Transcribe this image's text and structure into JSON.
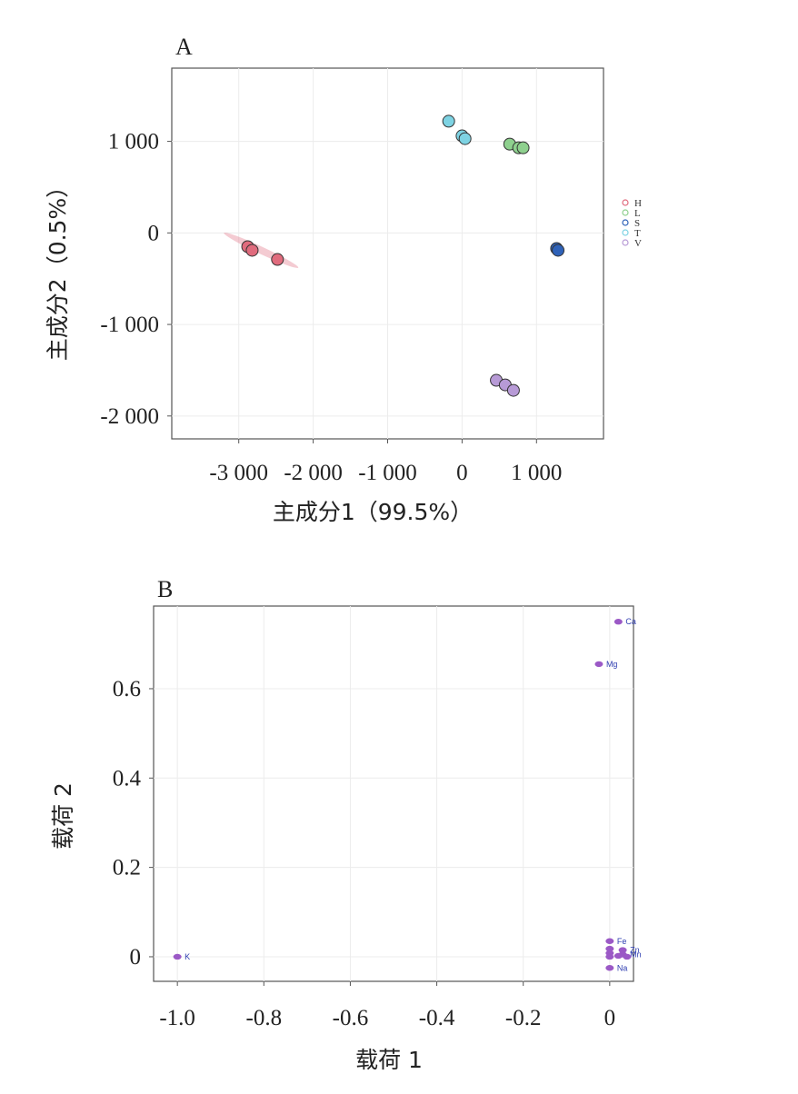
{
  "chart_data": [
    {
      "panel": "A",
      "type": "scatter",
      "xlabel": "主成分1（99.5%）",
      "ylabel": "主成分2（0.5%）",
      "xticks": [
        -3000,
        -2000,
        -1000,
        0,
        1000
      ],
      "xtick_labels": [
        "-3 000",
        "-2 000",
        "-1 000",
        "0",
        "1 000"
      ],
      "yticks": [
        1000,
        0,
        -1000,
        -2000
      ],
      "ytick_labels": [
        "1 000",
        "0",
        "-1 000",
        "-2 000"
      ],
      "xlim": [
        -3900,
        1900
      ],
      "ylim": [
        -2250,
        1800
      ],
      "grid": true,
      "legend_position": "right",
      "series": [
        {
          "name": "H",
          "color": "#e06b7d",
          "x": [
            -2880,
            -2820,
            -2480
          ],
          "y": [
            -150,
            -190,
            -290
          ],
          "ellipse": {
            "x1": -3200,
            "y1": 0,
            "x2": -2200,
            "y2": -380
          }
        },
        {
          "name": "L",
          "color": "#8ed08e",
          "x": [
            640,
            760,
            820
          ],
          "y": [
            970,
            930,
            930
          ]
        },
        {
          "name": "S",
          "color": "#2f62b8",
          "x": [
            1270,
            1290
          ],
          "y": [
            -170,
            -190
          ]
        },
        {
          "name": "T",
          "color": "#7ed3e3",
          "x": [
            -180,
            0,
            40
          ],
          "y": [
            1220,
            1060,
            1030
          ]
        },
        {
          "name": "V",
          "color": "#b79ad6",
          "x": [
            460,
            580,
            690
          ],
          "y": [
            -1610,
            -1660,
            -1720
          ]
        }
      ]
    },
    {
      "panel": "B",
      "type": "scatter",
      "xlabel": "载荷 1",
      "ylabel": "载荷 2",
      "xticks": [
        -1.0,
        -0.8,
        -0.6,
        -0.4,
        -0.2,
        0
      ],
      "xtick_labels": [
        "-1.0",
        "-0.8",
        "-0.6",
        "-0.4",
        "-0.2",
        "0"
      ],
      "yticks": [
        0.6,
        0.4,
        0.2,
        0
      ],
      "ytick_labels": [
        "0.6",
        "0.4",
        "0.2",
        "0"
      ],
      "xlim": [
        -1.055,
        0.055
      ],
      "ylim": [
        -0.055,
        0.785
      ],
      "grid": true,
      "point_color": "#9b59c6",
      "points": [
        {
          "label": "Ca",
          "x": 0.02,
          "y": 0.75
        },
        {
          "label": "Mg",
          "x": -0.025,
          "y": 0.655
        },
        {
          "label": "K",
          "x": -1.0,
          "y": 0.0
        },
        {
          "label": "Fe",
          "x": 0.0,
          "y": 0.035
        },
        {
          "label": "Zn",
          "x": 0.03,
          "y": 0.015
        },
        {
          "label": "",
          "x": 0.0,
          "y": 0.018
        },
        {
          "label": "",
          "x": 0.0,
          "y": 0.008
        },
        {
          "label": "Mn",
          "x": 0.03,
          "y": 0.005
        },
        {
          "label": "",
          "x": 0.0,
          "y": 0.0
        },
        {
          "label": "",
          "x": 0.02,
          "y": 0.002
        },
        {
          "label": "",
          "x": 0.04,
          "y": 0.0
        },
        {
          "label": "Na",
          "x": 0.0,
          "y": -0.025
        }
      ]
    }
  ]
}
